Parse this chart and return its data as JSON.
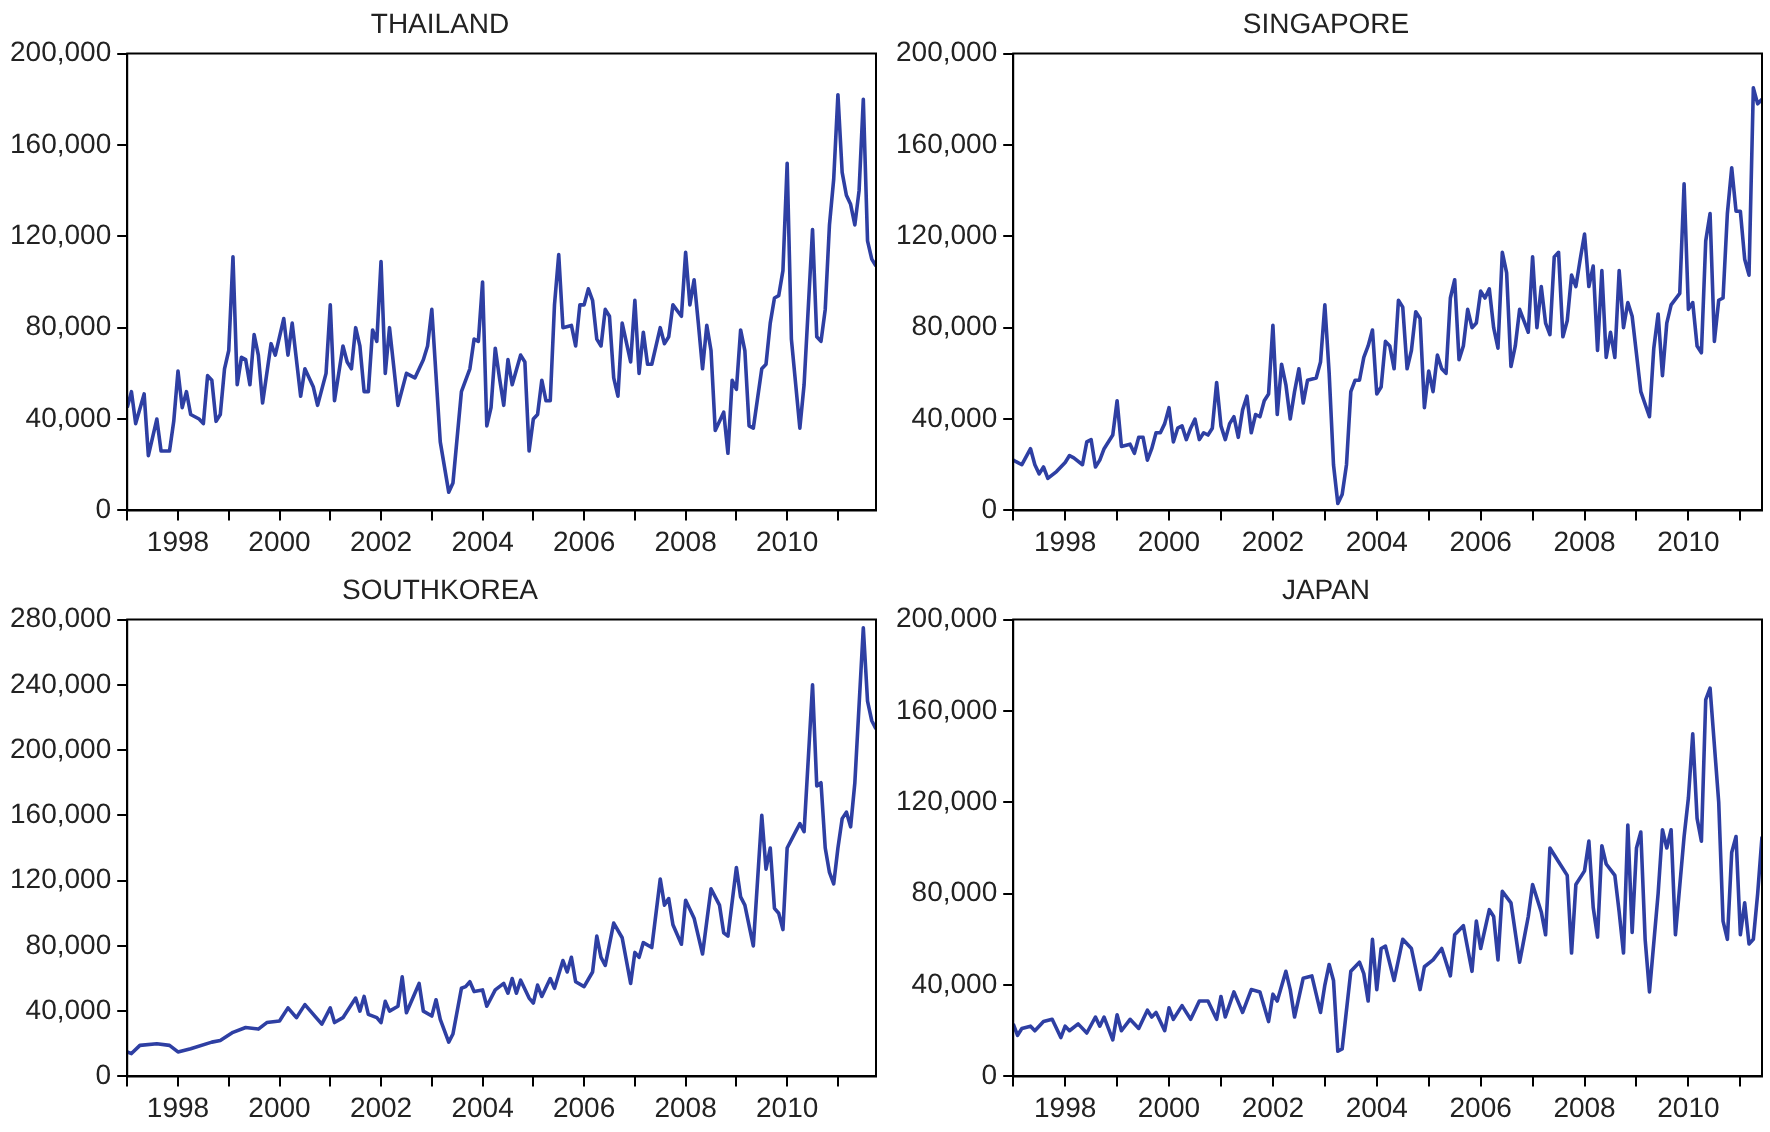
{
  "chart_data": [
    {
      "type": "line",
      "title": "THAILAND",
      "color": "#2e3fa3",
      "xlim": [
        "1997-01",
        "2011-10"
      ],
      "ylim": [
        0,
        200000
      ],
      "yticks": [
        {
          "value": 0,
          "label": "0"
        },
        {
          "value": 40000,
          "label": "40,000"
        },
        {
          "value": 80000,
          "label": "80,000"
        },
        {
          "value": 120000,
          "label": "120,000"
        },
        {
          "value": 160000,
          "label": "160,000"
        },
        {
          "value": 200000,
          "label": "200,000"
        }
      ],
      "xticks": [
        {
          "value": "1997-01",
          "label": null
        },
        {
          "value": "1998-01",
          "label": "1998"
        },
        {
          "value": "1999-01",
          "label": null
        },
        {
          "value": "2000-01",
          "label": "2000"
        },
        {
          "value": "2001-01",
          "label": null
        },
        {
          "value": "2002-01",
          "label": "2002"
        },
        {
          "value": "2003-01",
          "label": null
        },
        {
          "value": "2004-01",
          "label": "2004"
        },
        {
          "value": "2005-01",
          "label": null
        },
        {
          "value": "2006-01",
          "label": "2006"
        },
        {
          "value": "2007-01",
          "label": null
        },
        {
          "value": "2008-01",
          "label": "2008"
        },
        {
          "value": "2009-01",
          "label": null
        },
        {
          "value": "2010-01",
          "label": "2010"
        },
        {
          "value": "2011-01",
          "label": null
        }
      ],
      "x": [
        "1997-01",
        "1997-02",
        "1997-03",
        "1997-05",
        "1997-06",
        "1997-08",
        "1997-09",
        "1997-11",
        "1997-12",
        "1998-01",
        "1998-02",
        "1998-03",
        "1998-04",
        "1998-06",
        "1998-07",
        "1998-08",
        "1998-09",
        "1998-10",
        "1998-11",
        "1998-12",
        "1999-01",
        "1999-02",
        "1999-03",
        "1999-04",
        "1999-05",
        "1999-06",
        "1999-07",
        "1999-08",
        "1999-09",
        "1999-11",
        "1999-12",
        "2000-02",
        "2000-03",
        "2000-04",
        "2000-06",
        "2000-07",
        "2000-09",
        "2000-10",
        "2000-12",
        "2001-01",
        "2001-02",
        "2001-04",
        "2001-05",
        "2001-06",
        "2001-07",
        "2001-08",
        "2001-09",
        "2001-10",
        "2001-11",
        "2001-12",
        "2002-01",
        "2002-02",
        "2002-03",
        "2002-05",
        "2002-07",
        "2002-09",
        "2002-11",
        "2002-12",
        "2003-01",
        "2003-03",
        "2003-05",
        "2003-06",
        "2003-08",
        "2003-10",
        "2003-11",
        "2003-12",
        "2004-01",
        "2004-02",
        "2004-03",
        "2004-04",
        "2004-05",
        "2004-06",
        "2004-07",
        "2004-08",
        "2004-10",
        "2004-11",
        "2004-12",
        "2005-01",
        "2005-02",
        "2005-03",
        "2005-04",
        "2005-05",
        "2005-06",
        "2005-07",
        "2005-08",
        "2005-10",
        "2005-11",
        "2005-12",
        "2006-01",
        "2006-02",
        "2006-03",
        "2006-04",
        "2006-05",
        "2006-06",
        "2006-07",
        "2006-08",
        "2006-09",
        "2006-10",
        "2006-12",
        "2007-01",
        "2007-02",
        "2007-03",
        "2007-04",
        "2007-05",
        "2007-07",
        "2007-08",
        "2007-09",
        "2007-10",
        "2007-12",
        "2008-01",
        "2008-02",
        "2008-03",
        "2008-04",
        "2008-05",
        "2008-06",
        "2008-07",
        "2008-08",
        "2008-10",
        "2008-11",
        "2008-12",
        "2009-01",
        "2009-02",
        "2009-03",
        "2009-04",
        "2009-05",
        "2009-07",
        "2009-08",
        "2009-09",
        "2009-10",
        "2009-11",
        "2009-12",
        "2010-01",
        "2010-02",
        "2010-04",
        "2010-05",
        "2010-07",
        "2010-08",
        "2010-09",
        "2010-10",
        "2010-11",
        "2010-12",
        "2011-01",
        "2011-02",
        "2011-03",
        "2011-04",
        "2011-05",
        "2011-06",
        "2011-07",
        "2011-08",
        "2011-09",
        "2011-10"
      ],
      "values": [
        45000,
        52000,
        38000,
        51000,
        24000,
        40000,
        26000,
        26000,
        39000,
        61000,
        45000,
        52000,
        42000,
        40000,
        38000,
        59000,
        57000,
        39000,
        42000,
        62000,
        70000,
        111000,
        55000,
        67000,
        66000,
        55000,
        77000,
        68000,
        47000,
        73000,
        68000,
        84000,
        68000,
        82000,
        50000,
        62000,
        54000,
        46000,
        60000,
        90000,
        48000,
        72000,
        65000,
        62000,
        80000,
        72000,
        52000,
        52000,
        79000,
        74000,
        109000,
        60000,
        80000,
        46000,
        60000,
        58000,
        66000,
        72000,
        88000,
        30000,
        8000,
        12000,
        52000,
        62000,
        75000,
        74000,
        100000,
        37000,
        45000,
        71000,
        58000,
        46000,
        66000,
        55000,
        68000,
        65000,
        26000,
        40000,
        42000,
        57000,
        48000,
        48000,
        90000,
        112000,
        80000,
        81000,
        72000,
        90000,
        90000,
        97000,
        92000,
        75000,
        72000,
        88000,
        85000,
        58000,
        50000,
        82000,
        65000,
        92000,
        60000,
        78000,
        64000,
        64000,
        80000,
        73000,
        76000,
        90000,
        85000,
        113000,
        90000,
        101000,
        82000,
        62000,
        81000,
        70000,
        35000,
        43000,
        25000,
        57000,
        53000,
        79000,
        70000,
        37000,
        36000,
        62000,
        64000,
        82000,
        93000,
        94000,
        105000,
        152000,
        75000,
        36000,
        55000,
        123000,
        76000,
        74000,
        88000,
        125000,
        145000,
        182000,
        148000,
        138000,
        134000,
        125000,
        140000,
        180000,
        118000,
        110000,
        107000
      ]
    },
    {
      "type": "line",
      "title": "SINGAPORE",
      "color": "#2e3fa3",
      "xlim": [
        "1997-01",
        "2011-06"
      ],
      "ylim": [
        0,
        200000
      ],
      "yticks": [
        {
          "value": 0,
          "label": "0"
        },
        {
          "value": 40000,
          "label": "40,000"
        },
        {
          "value": 80000,
          "label": "80,000"
        },
        {
          "value": 120000,
          "label": "120,000"
        },
        {
          "value": 160000,
          "label": "160,000"
        },
        {
          "value": 200000,
          "label": "200,000"
        }
      ],
      "xticks": [
        {
          "value": "1997-01",
          "label": null
        },
        {
          "value": "1998-01",
          "label": "1998"
        },
        {
          "value": "1999-01",
          "label": null
        },
        {
          "value": "2000-01",
          "label": "2000"
        },
        {
          "value": "2001-01",
          "label": null
        },
        {
          "value": "2002-01",
          "label": "2002"
        },
        {
          "value": "2003-01",
          "label": null
        },
        {
          "value": "2004-01",
          "label": "2004"
        },
        {
          "value": "2005-01",
          "label": null
        },
        {
          "value": "2006-01",
          "label": "2006"
        },
        {
          "value": "2007-01",
          "label": null
        },
        {
          "value": "2008-01",
          "label": "2008"
        },
        {
          "value": "2009-01",
          "label": null
        },
        {
          "value": "2010-01",
          "label": "2010"
        },
        {
          "value": "2011-01",
          "label": null
        }
      ],
      "x": [
        "1997-01",
        "1997-03",
        "1997-05",
        "1997-06",
        "1997-07",
        "1997-08",
        "1997-09",
        "1997-11",
        "1998-01",
        "1998-02",
        "1998-03",
        "1998-05",
        "1998-06",
        "1998-07",
        "1998-08",
        "1998-09",
        "1998-10",
        "1998-12",
        "1999-01",
        "1999-02",
        "1999-04",
        "1999-05",
        "1999-06",
        "1999-07",
        "1999-08",
        "1999-09",
        "1999-10",
        "1999-11",
        "1999-12",
        "2000-01",
        "2000-02",
        "2000-03",
        "2000-04",
        "2000-05",
        "2000-06",
        "2000-07",
        "2000-08",
        "2000-09",
        "2000-10",
        "2000-11",
        "2000-12",
        "2001-01",
        "2001-02",
        "2001-03",
        "2001-04",
        "2001-05",
        "2001-06",
        "2001-07",
        "2001-08",
        "2001-09",
        "2001-10",
        "2001-11",
        "2001-12",
        "2002-01",
        "2002-02",
        "2002-03",
        "2002-04",
        "2002-05",
        "2002-06",
        "2002-07",
        "2002-08",
        "2002-09",
        "2002-11",
        "2002-12",
        "2003-01",
        "2003-02",
        "2003-03",
        "2003-04",
        "2003-05",
        "2003-06",
        "2003-07",
        "2003-08",
        "2003-09",
        "2003-10",
        "2003-11",
        "2003-12",
        "2004-01",
        "2004-02",
        "2004-03",
        "2004-04",
        "2004-05",
        "2004-06",
        "2004-07",
        "2004-08",
        "2004-09",
        "2004-10",
        "2004-11",
        "2004-12",
        "2005-01",
        "2005-02",
        "2005-03",
        "2005-04",
        "2005-05",
        "2005-06",
        "2005-07",
        "2005-08",
        "2005-09",
        "2005-10",
        "2005-11",
        "2005-12",
        "2006-01",
        "2006-02",
        "2006-03",
        "2006-04",
        "2006-05",
        "2006-06",
        "2006-07",
        "2006-08",
        "2006-09",
        "2006-10",
        "2006-11",
        "2006-12",
        "2007-01",
        "2007-02",
        "2007-03",
        "2007-04",
        "2007-05",
        "2007-06",
        "2007-07",
        "2007-08",
        "2007-09",
        "2007-10",
        "2007-11",
        "2007-12",
        "2008-01",
        "2008-02",
        "2008-03",
        "2008-04",
        "2008-05",
        "2008-06",
        "2008-07",
        "2008-08",
        "2008-09",
        "2008-10",
        "2008-11",
        "2008-12",
        "2009-02",
        "2009-04",
        "2009-05",
        "2009-06",
        "2009-07",
        "2009-08",
        "2009-09",
        "2009-11",
        "2009-12",
        "2010-01",
        "2010-02",
        "2010-03",
        "2010-04",
        "2010-05",
        "2010-06",
        "2010-07",
        "2010-08",
        "2010-09",
        "2010-10",
        "2010-11",
        "2010-12",
        "2011-01",
        "2011-02",
        "2011-03",
        "2011-04",
        "2011-05",
        "2011-06"
      ],
      "values": [
        22000,
        20000,
        27000,
        20000,
        16000,
        19000,
        14000,
        17000,
        21000,
        24000,
        23000,
        20000,
        30000,
        31000,
        19000,
        22000,
        27000,
        33000,
        48000,
        28000,
        29000,
        25000,
        32000,
        32000,
        22000,
        27000,
        34000,
        34000,
        38000,
        45000,
        30000,
        36000,
        37000,
        31000,
        36000,
        40000,
        31000,
        34000,
        33000,
        36000,
        56000,
        37000,
        31000,
        38000,
        41000,
        32000,
        44000,
        50000,
        34000,
        42000,
        41000,
        48000,
        51000,
        81000,
        42000,
        64000,
        55000,
        40000,
        52000,
        62000,
        47000,
        57000,
        58000,
        65000,
        90000,
        60000,
        20000,
        3000,
        7000,
        20000,
        52000,
        57000,
        57000,
        67000,
        72000,
        79000,
        51000,
        54000,
        74000,
        72000,
        62000,
        92000,
        89000,
        62000,
        70000,
        87000,
        84000,
        45000,
        61000,
        52000,
        68000,
        62000,
        60000,
        93000,
        101000,
        66000,
        72000,
        88000,
        80000,
        82000,
        96000,
        93000,
        97000,
        80000,
        71000,
        113000,
        104000,
        63000,
        72000,
        88000,
        83000,
        78000,
        111000,
        80000,
        98000,
        82000,
        77000,
        111000,
        113000,
        76000,
        83000,
        103000,
        98000,
        110000,
        121000,
        98000,
        107000,
        70000,
        105000,
        67000,
        78000,
        67000,
        105000,
        80000,
        91000,
        85000,
        52000,
        41000,
        71000,
        86000,
        59000,
        82000,
        90000,
        95000,
        143000,
        88000,
        91000,
        72000,
        69000,
        118000,
        130000,
        74000,
        92000,
        93000,
        130000,
        150000,
        131000,
        131000,
        110000,
        103000,
        185000,
        178000,
        180000
      ]
    },
    {
      "type": "line",
      "title": "SOUTHKOREA",
      "color": "#2e3fa3",
      "xlim": [
        "1997-01",
        "2011-10"
      ],
      "ylim": [
        0,
        280000
      ],
      "yticks": [
        {
          "value": 0,
          "label": "0"
        },
        {
          "value": 40000,
          "label": "40,000"
        },
        {
          "value": 80000,
          "label": "80,000"
        },
        {
          "value": 120000,
          "label": "120,000"
        },
        {
          "value": 160000,
          "label": "160,000"
        },
        {
          "value": 200000,
          "label": "200,000"
        },
        {
          "value": 240000,
          "label": "240,000"
        },
        {
          "value": 280000,
          "label": "280,000"
        }
      ],
      "xticks": [
        {
          "value": "1997-01",
          "label": null
        },
        {
          "value": "1998-01",
          "label": "1998"
        },
        {
          "value": "1999-01",
          "label": null
        },
        {
          "value": "2000-01",
          "label": "2000"
        },
        {
          "value": "2001-01",
          "label": null
        },
        {
          "value": "2002-01",
          "label": "2002"
        },
        {
          "value": "2003-01",
          "label": null
        },
        {
          "value": "2004-01",
          "label": "2004"
        },
        {
          "value": "2005-01",
          "label": null
        },
        {
          "value": "2006-01",
          "label": "2006"
        },
        {
          "value": "2007-01",
          "label": null
        },
        {
          "value": "2008-01",
          "label": "2008"
        },
        {
          "value": "2009-01",
          "label": null
        },
        {
          "value": "2010-01",
          "label": "2010"
        },
        {
          "value": "2011-01",
          "label": null
        }
      ],
      "x": [
        "1997-01",
        "1997-02",
        "1997-04",
        "1997-08",
        "1997-11",
        "1998-01",
        "1998-04",
        "1998-09",
        "1998-11",
        "1999-02",
        "1999-05",
        "1999-08",
        "1999-10",
        "2000-01",
        "2000-03",
        "2000-05",
        "2000-07",
        "2000-09",
        "2000-11",
        "2001-01",
        "2001-02",
        "2001-04",
        "2001-07",
        "2001-08",
        "2001-09",
        "2001-10",
        "2001-12",
        "2002-01",
        "2002-02",
        "2002-03",
        "2002-05",
        "2002-06",
        "2002-07",
        "2002-09",
        "2002-10",
        "2002-11",
        "2003-01",
        "2003-02",
        "2003-03",
        "2003-05",
        "2003-06",
        "2003-08",
        "2003-09",
        "2003-10",
        "2003-11",
        "2004-01",
        "2004-02",
        "2004-04",
        "2004-06",
        "2004-07",
        "2004-08",
        "2004-09",
        "2004-10",
        "2004-12",
        "2005-01",
        "2005-02",
        "2005-03",
        "2005-05",
        "2005-06",
        "2005-08",
        "2005-09",
        "2005-10",
        "2005-11",
        "2006-01",
        "2006-03",
        "2006-04",
        "2006-05",
        "2006-06",
        "2006-08",
        "2006-10",
        "2006-12",
        "2007-01",
        "2007-02",
        "2007-03",
        "2007-05",
        "2007-07",
        "2007-08",
        "2007-09",
        "2007-10",
        "2007-12",
        "2008-01",
        "2008-03",
        "2008-05",
        "2008-07",
        "2008-09",
        "2008-10",
        "2008-11",
        "2009-01",
        "2009-02",
        "2009-03",
        "2009-05",
        "2009-07",
        "2009-08",
        "2009-09",
        "2009-10",
        "2009-11",
        "2009-12",
        "2010-01",
        "2010-03",
        "2010-04",
        "2010-05",
        "2010-07",
        "2010-08",
        "2010-09",
        "2010-10",
        "2010-11",
        "2010-12",
        "2011-01",
        "2011-02",
        "2011-03",
        "2011-04",
        "2011-05",
        "2011-07",
        "2011-08",
        "2011-09",
        "2011-10"
      ],
      "values": [
        15000,
        14000,
        19000,
        20000,
        19000,
        15000,
        17000,
        21000,
        22000,
        27000,
        30000,
        29000,
        33000,
        34000,
        42000,
        36000,
        44000,
        38000,
        32000,
        42000,
        33000,
        36000,
        48000,
        40000,
        49000,
        38000,
        36000,
        33000,
        46000,
        40000,
        43000,
        61000,
        39000,
        51000,
        57000,
        40000,
        37000,
        47000,
        35000,
        21000,
        26000,
        54000,
        55000,
        58000,
        52000,
        53000,
        43000,
        53000,
        57000,
        51000,
        60000,
        51000,
        59000,
        48000,
        45000,
        56000,
        49000,
        60000,
        54000,
        71000,
        64000,
        73000,
        58000,
        55000,
        64000,
        86000,
        73000,
        68000,
        94000,
        85000,
        57000,
        76000,
        73000,
        82000,
        79000,
        121000,
        105000,
        109000,
        93000,
        81000,
        108000,
        97000,
        75000,
        115000,
        105000,
        88000,
        86000,
        128000,
        110000,
        105000,
        80000,
        160000,
        127000,
        140000,
        103000,
        100000,
        90000,
        140000,
        150000,
        155000,
        150000,
        240000,
        178000,
        180000,
        140000,
        125000,
        118000,
        140000,
        158000,
        162000,
        153000,
        180000,
        275000,
        230000,
        218000,
        213000
      ]
    },
    {
      "type": "line",
      "title": "JAPAN",
      "color": "#2e3fa3",
      "xlim": [
        "1997-01",
        "2011-06"
      ],
      "ylim": [
        0,
        200000
      ],
      "yticks": [
        {
          "value": 0,
          "label": "0"
        },
        {
          "value": 40000,
          "label": "40,000"
        },
        {
          "value": 80000,
          "label": "80,000"
        },
        {
          "value": 120000,
          "label": "120,000"
        },
        {
          "value": 160000,
          "label": "160,000"
        },
        {
          "value": 200000,
          "label": "200,000"
        }
      ],
      "xticks": [
        {
          "value": "1997-01",
          "label": null
        },
        {
          "value": "1998-01",
          "label": "1998"
        },
        {
          "value": "1999-01",
          "label": null
        },
        {
          "value": "2000-01",
          "label": "2000"
        },
        {
          "value": "2001-01",
          "label": null
        },
        {
          "value": "2002-01",
          "label": "2002"
        },
        {
          "value": "2003-01",
          "label": null
        },
        {
          "value": "2004-01",
          "label": "2004"
        },
        {
          "value": "2005-01",
          "label": null
        },
        {
          "value": "2006-01",
          "label": "2006"
        },
        {
          "value": "2007-01",
          "label": null
        },
        {
          "value": "2008-01",
          "label": "2008"
        },
        {
          "value": "2009-01",
          "label": null
        },
        {
          "value": "2010-01",
          "label": "2010"
        },
        {
          "value": "2011-01",
          "label": null
        }
      ],
      "x": [
        "1997-01",
        "1997-02",
        "1997-03",
        "1997-05",
        "1997-06",
        "1997-08",
        "1997-10",
        "1997-12",
        "1998-01",
        "1998-02",
        "1998-04",
        "1998-06",
        "1998-08",
        "1998-09",
        "1998-10",
        "1998-12",
        "1999-01",
        "1999-02",
        "1999-04",
        "1999-06",
        "1999-08",
        "1999-09",
        "1999-10",
        "1999-12",
        "2000-01",
        "2000-02",
        "2000-04",
        "2000-06",
        "2000-08",
        "2000-10",
        "2000-12",
        "2001-01",
        "2001-02",
        "2001-04",
        "2001-06",
        "2001-08",
        "2001-10",
        "2001-12",
        "2002-01",
        "2002-02",
        "2002-04",
        "2002-05",
        "2002-06",
        "2002-08",
        "2002-10",
        "2002-12",
        "2003-01",
        "2003-02",
        "2003-03",
        "2003-04",
        "2003-05",
        "2003-07",
        "2003-09",
        "2003-10",
        "2003-11",
        "2003-12",
        "2004-01",
        "2004-02",
        "2004-03",
        "2004-05",
        "2004-07",
        "2004-09",
        "2004-11",
        "2004-12",
        "2005-02",
        "2005-04",
        "2005-06",
        "2005-07",
        "2005-09",
        "2005-11",
        "2005-12",
        "2006-01",
        "2006-03",
        "2006-04",
        "2006-05",
        "2006-06",
        "2006-08",
        "2006-10",
        "2006-12",
        "2007-01",
        "2007-03",
        "2007-04",
        "2007-05",
        "2007-07",
        "2007-09",
        "2007-10",
        "2007-11",
        "2008-01",
        "2008-02",
        "2008-03",
        "2008-04",
        "2008-05",
        "2008-06",
        "2008-08",
        "2008-09",
        "2008-10",
        "2008-11",
        "2008-12",
        "2009-01",
        "2009-02",
        "2009-03",
        "2009-04",
        "2009-06",
        "2009-07",
        "2009-08",
        "2009-09",
        "2009-10",
        "2009-12",
        "2010-01",
        "2010-02",
        "2010-03",
        "2010-04",
        "2010-05",
        "2010-06",
        "2010-08",
        "2010-09",
        "2010-10",
        "2010-11",
        "2010-12",
        "2011-01",
        "2011-02",
        "2011-03",
        "2011-04",
        "2011-05",
        "2011-06"
      ],
      "values": [
        23000,
        18000,
        21000,
        22000,
        20000,
        24000,
        25000,
        17000,
        22000,
        20000,
        23000,
        19000,
        26000,
        22000,
        26000,
        16000,
        27000,
        20000,
        25000,
        21000,
        29000,
        26000,
        28000,
        20000,
        30000,
        25000,
        31000,
        25000,
        33000,
        33000,
        25000,
        35000,
        26000,
        37000,
        28000,
        38000,
        37000,
        24000,
        36000,
        33000,
        46000,
        38000,
        26000,
        43000,
        44000,
        28000,
        40000,
        49000,
        42000,
        11000,
        12000,
        46000,
        50000,
        45000,
        33000,
        60000,
        38000,
        56000,
        57000,
        42000,
        60000,
        56000,
        38000,
        48000,
        51000,
        56000,
        44000,
        62000,
        66000,
        46000,
        68000,
        56000,
        73000,
        70000,
        51000,
        81000,
        76000,
        50000,
        70000,
        84000,
        72000,
        62000,
        100000,
        94000,
        88000,
        54000,
        84000,
        90000,
        103000,
        74000,
        61000,
        101000,
        93000,
        88000,
        72000,
        54000,
        110000,
        63000,
        100000,
        107000,
        60000,
        37000,
        80000,
        108000,
        100000,
        108000,
        62000,
        105000,
        122000,
        150000,
        113000,
        103000,
        165000,
        170000,
        120000,
        68000,
        60000,
        98000,
        105000,
        62000,
        76000,
        58000,
        60000,
        80000,
        105000
      ]
    }
  ]
}
